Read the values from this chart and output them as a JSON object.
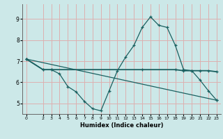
{
  "xlabel": "Humidex (Indice chaleur)",
  "background_color": "#cce8e8",
  "grid_color": "#ddb0b0",
  "line_color": "#1a6060",
  "marker": "+",
  "xlim": [
    -0.5,
    23.5
  ],
  "ylim": [
    4.5,
    9.7
  ],
  "yticks": [
    5,
    6,
    7,
    8,
    9
  ],
  "xticks": [
    0,
    2,
    3,
    4,
    5,
    6,
    7,
    8,
    9,
    10,
    11,
    12,
    13,
    14,
    15,
    16,
    17,
    18,
    19,
    20,
    21,
    22,
    23
  ],
  "line1_x": [
    0,
    2,
    3,
    4,
    5,
    6,
    7,
    8,
    9,
    10,
    11,
    12,
    13,
    14,
    15,
    16,
    17,
    18,
    19,
    20,
    21,
    22,
    23
  ],
  "line1_y": [
    7.1,
    6.6,
    6.6,
    6.4,
    5.8,
    5.55,
    5.1,
    4.75,
    4.65,
    5.6,
    6.55,
    7.2,
    7.75,
    8.6,
    9.1,
    8.7,
    8.6,
    7.75,
    6.6,
    6.55,
    6.1,
    5.6,
    5.15
  ],
  "line2_x": [
    0,
    2,
    3,
    14,
    18,
    19,
    20,
    21,
    22,
    23
  ],
  "line2_y": [
    7.1,
    6.6,
    6.6,
    6.6,
    6.6,
    6.55,
    6.55,
    6.55,
    6.55,
    6.5
  ],
  "line3_x": [
    0,
    23
  ],
  "line3_y": [
    7.1,
    5.15
  ]
}
